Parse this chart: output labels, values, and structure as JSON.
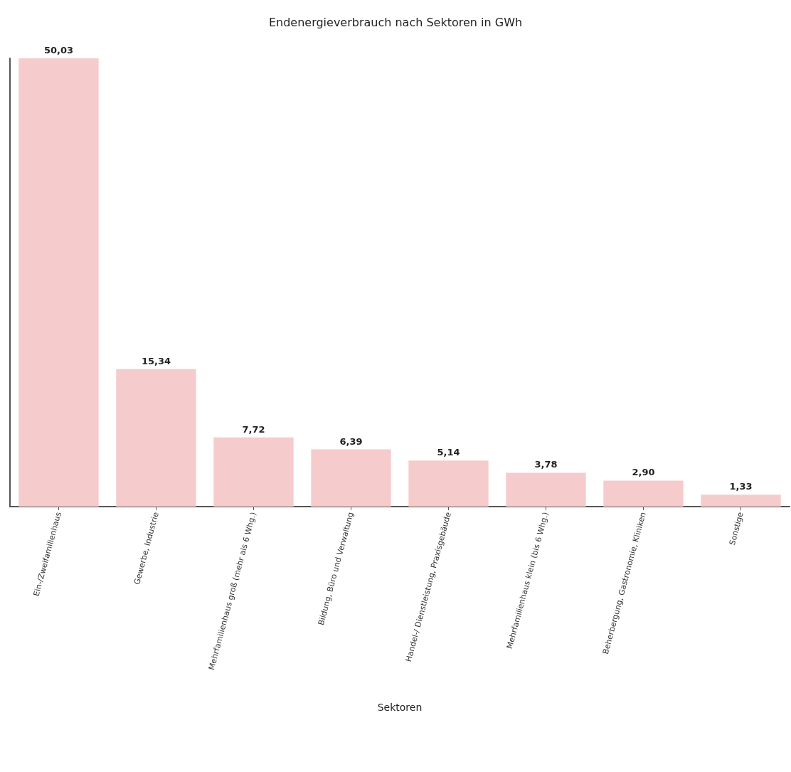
{
  "chart_data": {
    "type": "bar",
    "title": "Endenergieverbrauch nach Sektoren in GWh",
    "xlabel": "Sektoren",
    "categories": [
      "Ein-/Zweifamilienhaus",
      "Gewerbe, Industrie",
      "Mehrfamilienhaus groß (mehr als 6 Whg.)",
      "Bildung, Büro und Verwaltung",
      "Handel-/ Dienstleistung, Praxisgebäude",
      "Mehrfamilienhaus klein (bis 6 Whg.)",
      "Beherbergung, Gastronomie, Kliniken",
      "Sonstige"
    ],
    "values": [
      50.03,
      15.34,
      7.72,
      6.39,
      5.14,
      3.78,
      2.9,
      1.33
    ],
    "value_labels": [
      "50,03",
      "15,34",
      "7,72",
      "6,39",
      "5,14",
      "3,78",
      "2,90",
      "1,33"
    ],
    "color": "#f6cbcb",
    "tick_labels": "x",
    "grid": false
  }
}
